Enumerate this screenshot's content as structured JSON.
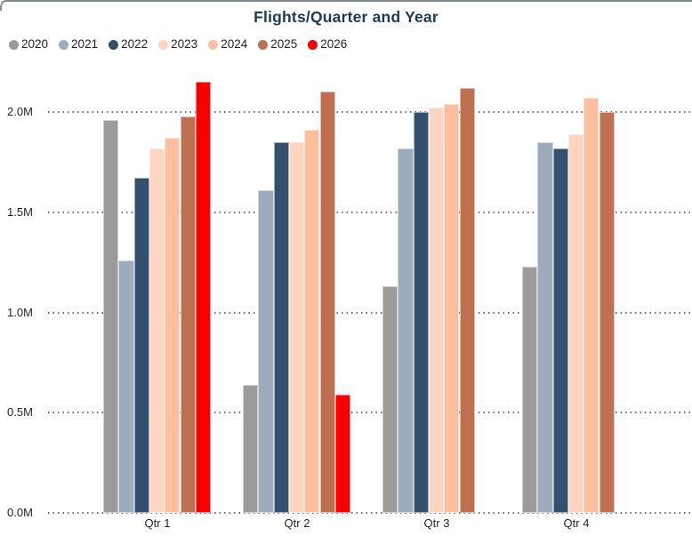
{
  "card": {
    "top_border_color": "#7d888e",
    "background_color": "#ffffff"
  },
  "chart_data": {
    "type": "bar",
    "title": "Flights/Quarter and Year",
    "title_color": "#1c3a57",
    "xlabel": "",
    "ylabel": "",
    "y_axis_unit": "M",
    "categories": [
      "Qtr 1",
      "Qtr 2",
      "Qtr 3",
      "Qtr 4"
    ],
    "series": [
      {
        "name": "2020",
        "color": "#9b9b9a",
        "values_millions": [
          1.96,
          0.64,
          1.13,
          1.23
        ]
      },
      {
        "name": "2021",
        "color": "#9dacbd",
        "values_millions": [
          1.26,
          1.61,
          1.82,
          1.85
        ]
      },
      {
        "name": "2022",
        "color": "#35506c",
        "values_millions": [
          1.67,
          1.85,
          2.0,
          1.82
        ]
      },
      {
        "name": "2023",
        "color": "#fdd5c0",
        "values_millions": [
          1.82,
          1.85,
          2.02,
          1.89
        ]
      },
      {
        "name": "2024",
        "color": "#fcbf9e",
        "values_millions": [
          1.87,
          1.91,
          2.04,
          2.07
        ]
      },
      {
        "name": "2025",
        "color": "#bf7050",
        "values_millions": [
          1.98,
          2.1,
          2.12,
          2.0
        ]
      },
      {
        "name": "2026",
        "color": "#f80000",
        "values_millions": [
          2.15,
          0.59,
          null,
          null
        ]
      }
    ],
    "y_ticks": [
      "0.0M",
      "0.5M",
      "1.0M",
      "1.5M",
      "2.0M"
    ],
    "y_tick_values_millions": [
      0,
      0.5,
      1.0,
      1.5,
      2.0
    ],
    "ylim_millions": [
      0,
      2.15
    ],
    "grid": "horizontal dotted",
    "gridline_color": "#6f6f6f",
    "legend_position": "top-left",
    "legend_marker": "circle"
  }
}
